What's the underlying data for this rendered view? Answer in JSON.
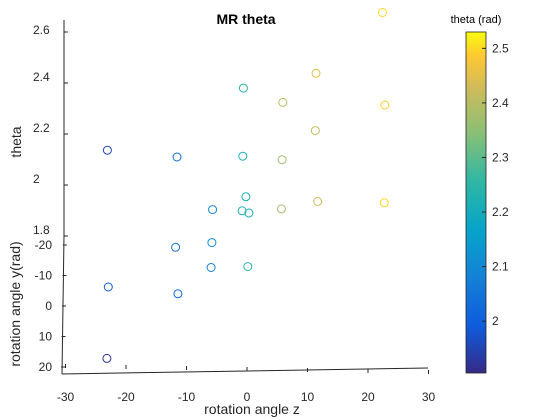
{
  "chart_data": {
    "type": "scatter",
    "title": "MR theta",
    "xlabel": "rotation angle z",
    "ylabel": "rotation angle y(rad)",
    "zlabel": "theta",
    "view": "3d",
    "grid": false,
    "xlim": [
      -30,
      30
    ],
    "ylim": [
      -25,
      25
    ],
    "zlim": [
      1.8,
      2.6
    ],
    "xticks": [
      "-30",
      "-20",
      "-10",
      "0",
      "10",
      "20",
      "30"
    ],
    "yticks": [
      "-20",
      "-10",
      "0",
      "10",
      "20"
    ],
    "zticks": [
      "1.8",
      "2",
      "2.2",
      "2.4",
      "2.6"
    ],
    "marker": "circle-open",
    "colormap": "parula",
    "colorbar": {
      "label": "theta (rad)",
      "range": [
        1.905,
        2.53
      ],
      "ticks": [
        "2",
        "2.1",
        "2.2",
        "2.3",
        "2.4",
        "2.5"
      ]
    },
    "points": [
      {
        "x": 22.0,
        "y": -22.0,
        "z": 2.46,
        "c": 2.5
      },
      {
        "x": 11.0,
        "y": -22.0,
        "z": 2.23,
        "c": 2.45
      },
      {
        "x": 22.5,
        "y": -16.0,
        "z": 2.25,
        "c": 2.49
      },
      {
        "x": 11.0,
        "y": -16.0,
        "z": 2.15,
        "c": 2.41
      },
      {
        "x": 5.5,
        "y": -22.0,
        "z": 2.12,
        "c": 2.4
      },
      {
        "x": 5.5,
        "y": -16.0,
        "z": 2.04,
        "c": 2.37
      },
      {
        "x": 11.5,
        "y": -10.0,
        "z": 2.02,
        "c": 2.42
      },
      {
        "x": 5.5,
        "y": -10.0,
        "z": 1.99,
        "c": 2.38
      },
      {
        "x": 22.5,
        "y": -10.0,
        "z": 2.02,
        "c": 2.5
      },
      {
        "x": -1.0,
        "y": -22.0,
        "z": 2.17,
        "c": 2.24
      },
      {
        "x": -1.0,
        "y": -16.0,
        "z": 2.05,
        "c": 2.22
      },
      {
        "x": -1.0,
        "y": -10.0,
        "z": 1.98,
        "c": 2.22
      },
      {
        "x": -0.5,
        "y": -16.0,
        "z": 1.9,
        "c": 2.2
      },
      {
        "x": 0.0,
        "y": -16.0,
        "z": 1.84,
        "c": 2.2
      },
      {
        "x": 0.0,
        "y": -7.0,
        "z": 1.84,
        "c": 2.25
      },
      {
        "x": -6.0,
        "y": -16.0,
        "z": 1.85,
        "c": 2.08
      },
      {
        "x": -6.0,
        "y": -10.0,
        "z": 1.86,
        "c": 2.1
      },
      {
        "x": -6.0,
        "y": -4.0,
        "z": 1.9,
        "c": 2.07
      },
      {
        "x": -12.0,
        "y": -22.0,
        "z": 1.91,
        "c": 2.03
      },
      {
        "x": -12.0,
        "y": -10.0,
        "z": 1.84,
        "c": 2.05
      },
      {
        "x": -11.5,
        "y": -4.0,
        "z": 1.8,
        "c": 2.02
      },
      {
        "x": -23.5,
        "y": -22.0,
        "z": 1.93,
        "c": 1.95
      },
      {
        "x": -23.0,
        "y": -4.0,
        "z": 1.82,
        "c": 1.99
      },
      {
        "x": -23.0,
        "y": 8.0,
        "z": 1.82,
        "c": 1.92
      }
    ]
  }
}
